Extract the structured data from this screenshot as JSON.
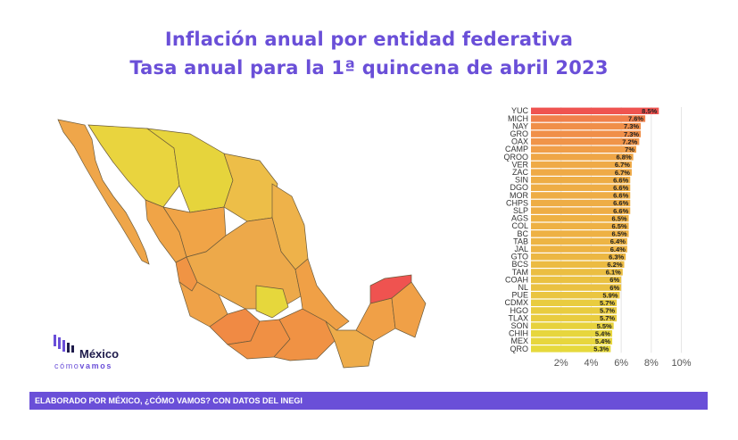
{
  "title_line1": "Inflación anual por entidad federativa",
  "title_line2": "Tasa anual para la 1ª quincena de abril 2023",
  "footer": "ELABORADO POR MÉXICO, ¿CÓMO VAMOS? CON DATOS DEL INEGI",
  "logo": {
    "word": "México",
    "sub_prefix": "cómo",
    "sub_suffix": "vamos"
  },
  "colors": {
    "accent": "#6a4fd8",
    "low": "#e6d93c",
    "mid": "#f0a347",
    "high": "#ef5350"
  },
  "chart_data": {
    "type": "bar",
    "orientation": "horizontal",
    "categories": [
      "YUC",
      "MICH",
      "NAY",
      "GRO",
      "OAX",
      "CAMP",
      "QROO",
      "VER",
      "ZAC",
      "SIN",
      "DGO",
      "MOR",
      "CHPS",
      "SLP",
      "AGS",
      "COL",
      "BC",
      "TAB",
      "JAL",
      "GTO",
      "BCS",
      "TAM",
      "COAH",
      "NL",
      "PUE",
      "CDMX",
      "HGO",
      "TLAX",
      "SON",
      "CHIH",
      "MEX",
      "QRO"
    ],
    "values": [
      8.5,
      7.6,
      7.3,
      7.3,
      7.2,
      7.0,
      6.8,
      6.7,
      6.7,
      6.6,
      6.6,
      6.6,
      6.6,
      6.6,
      6.5,
      6.5,
      6.5,
      6.4,
      6.4,
      6.3,
      6.2,
      6.1,
      6.0,
      6.0,
      5.9,
      5.7,
      5.7,
      5.7,
      5.5,
      5.4,
      5.4,
      5.3
    ],
    "value_labels": [
      "8.5%",
      "7.6%",
      "7.3%",
      "7.3%",
      "7.2%",
      "7%",
      "6.8%",
      "6.7%",
      "6.7%",
      "6.6%",
      "6.6%",
      "6.6%",
      "6.6%",
      "6.6%",
      "6.5%",
      "6.5%",
      "6.5%",
      "6.4%",
      "6.4%",
      "6.3%",
      "6.2%",
      "6.1%",
      "6%",
      "6%",
      "5.9%",
      "5.7%",
      "5.7%",
      "5.7%",
      "5.5%",
      "5.4%",
      "5.4%",
      "5.3%"
    ],
    "xticks": [
      "2%",
      "4%",
      "6%",
      "8%",
      "10%"
    ],
    "xtick_values": [
      2,
      4,
      6,
      8,
      10
    ],
    "xlim": [
      0,
      10.5
    ],
    "grid": true
  }
}
